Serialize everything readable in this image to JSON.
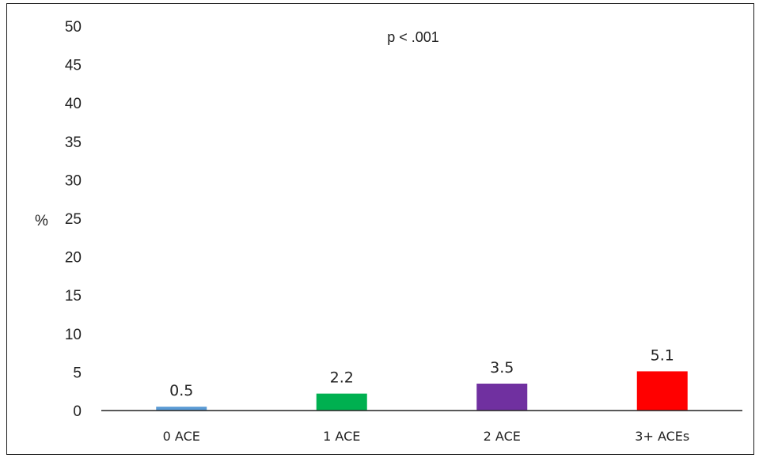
{
  "chart_data": {
    "type": "bar",
    "categories": [
      "0 ACE",
      "1 ACE",
      "2 ACE",
      "3+ ACEs"
    ],
    "values": [
      0.5,
      2.2,
      3.5,
      5.1
    ],
    "data_labels": [
      "0.5",
      "2.2",
      "3.5",
      "5.1"
    ],
    "colors": [
      "#5b9bd5",
      "#00b050",
      "#7030a0",
      "#ff0000"
    ],
    "ylabel": "%",
    "ylim": [
      0,
      50
    ],
    "yticks": [
      "0",
      "5",
      "10",
      "15",
      "20",
      "25",
      "30",
      "35",
      "40",
      "45",
      "50"
    ],
    "annotation": "p < .001",
    "grid": false,
    "legend": "none"
  }
}
